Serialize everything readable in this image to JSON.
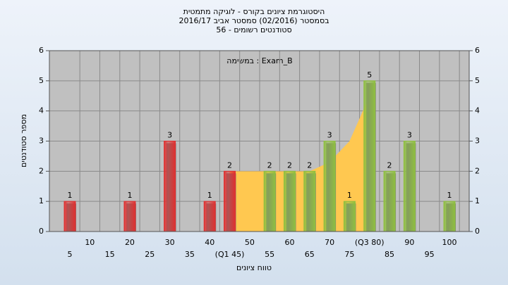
{
  "chart_data": {
    "type": "bar",
    "title": "היסטוגרמת ציונים בקורס - לוגיקה מתמטית",
    "subtitle": "בסמסטר  (02/2016)  סמסטר אביב 2016/17",
    "subtitle2": "סטודנטים רשומים - 56",
    "annotation": "במשימה : Exam_B",
    "ylabel": "מספר סטודנטים",
    "xlabel": "טווח ציונים",
    "categories": [
      "5",
      "10",
      "15",
      "20",
      "25",
      "30",
      "35",
      "40",
      "(Q1 45)",
      "50",
      "55",
      "60",
      "65",
      "70",
      "75",
      "(Q3 80)",
      "85",
      "90",
      "95",
      "100"
    ],
    "values": [
      1,
      0,
      0,
      1,
      0,
      3,
      0,
      1,
      2,
      0,
      2,
      2,
      2,
      3,
      1,
      5,
      2,
      3,
      0,
      1
    ],
    "colors": [
      "#e03030",
      "#e03030",
      "#e03030",
      "#e03030",
      "#e03030",
      "#e03030",
      "#e03030",
      "#e03030",
      "#e03030",
      "#8fbf40",
      "#8fbf40",
      "#8fbf40",
      "#8fbf40",
      "#8fbf40",
      "#8fbf40",
      "#8fbf40",
      "#8fbf40",
      "#8fbf40",
      "#8fbf40",
      "#8fbf40"
    ],
    "series": [
      {
        "color": "#ffc850",
        "values": [
          null,
          null,
          null,
          null,
          null,
          null,
          null,
          null,
          2,
          2,
          2,
          2,
          2,
          2.3,
          3,
          4.5,
          null,
          null,
          null,
          null
        ]
      }
    ],
    "ylim": [
      0,
      6
    ],
    "yticks": [
      0,
      1,
      2,
      3,
      4,
      5,
      6
    ],
    "y2lim": [
      0,
      6
    ],
    "y2ticks": [
      0,
      1,
      2,
      3,
      4,
      5,
      6
    ],
    "grid": true
  }
}
